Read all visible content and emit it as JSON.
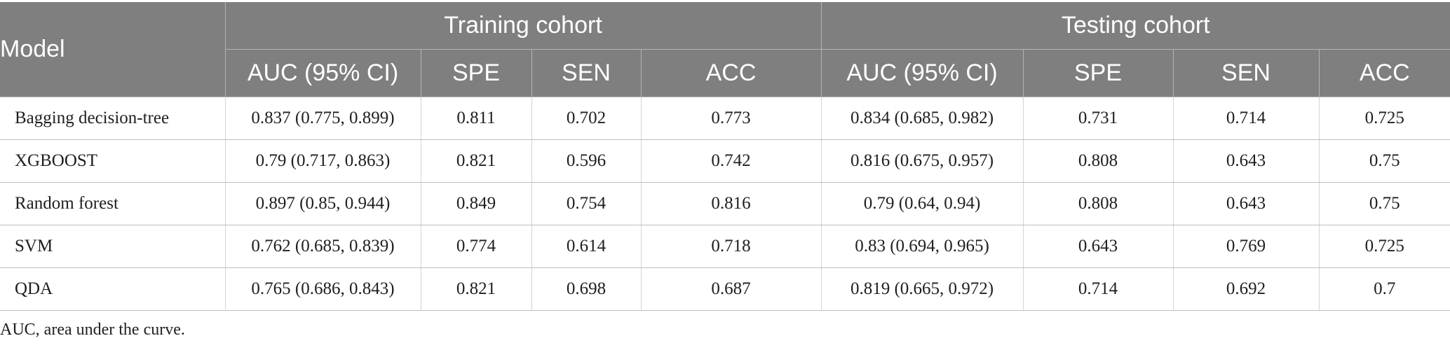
{
  "table": {
    "model_header": "Model",
    "group_headers": [
      "Training cohort",
      "Testing cohort"
    ],
    "sub_headers": [
      "AUC (95% CI)",
      "SPE",
      "SEN",
      "ACC",
      "AUC (95% CI)",
      "SPE",
      "SEN",
      "ACC"
    ],
    "rows": [
      {
        "model": "Bagging decision-tree",
        "cells": [
          "0.837 (0.775, 0.899)",
          "0.811",
          "0.702",
          "0.773",
          "0.834 (0.685, 0.982)",
          "0.731",
          "0.714",
          "0.725"
        ]
      },
      {
        "model": "XGBOOST",
        "cells": [
          "0.79 (0.717, 0.863)",
          "0.821",
          "0.596",
          "0.742",
          "0.816 (0.675, 0.957)",
          "0.808",
          "0.643",
          "0.75"
        ]
      },
      {
        "model": "Random forest",
        "cells": [
          "0.897 (0.85, 0.944)",
          "0.849",
          "0.754",
          "0.816",
          "0.79 (0.64, 0.94)",
          "0.808",
          "0.643",
          "0.75"
        ]
      },
      {
        "model": "SVM",
        "cells": [
          "0.762 (0.685, 0.839)",
          "0.774",
          "0.614",
          "0.718",
          "0.83 (0.694, 0.965)",
          "0.643",
          "0.769",
          "0.725"
        ]
      },
      {
        "model": "QDA",
        "cells": [
          "0.765 (0.686, 0.843)",
          "0.821",
          "0.698",
          "0.687",
          "0.819 (0.665, 0.972)",
          "0.714",
          "0.692",
          "0.7"
        ]
      }
    ]
  },
  "footnote": "AUC, area under the curve.",
  "colors": {
    "header_bg": "#7f7f7f",
    "header_text": "#ffffff",
    "body_text": "#1f1f1f"
  }
}
